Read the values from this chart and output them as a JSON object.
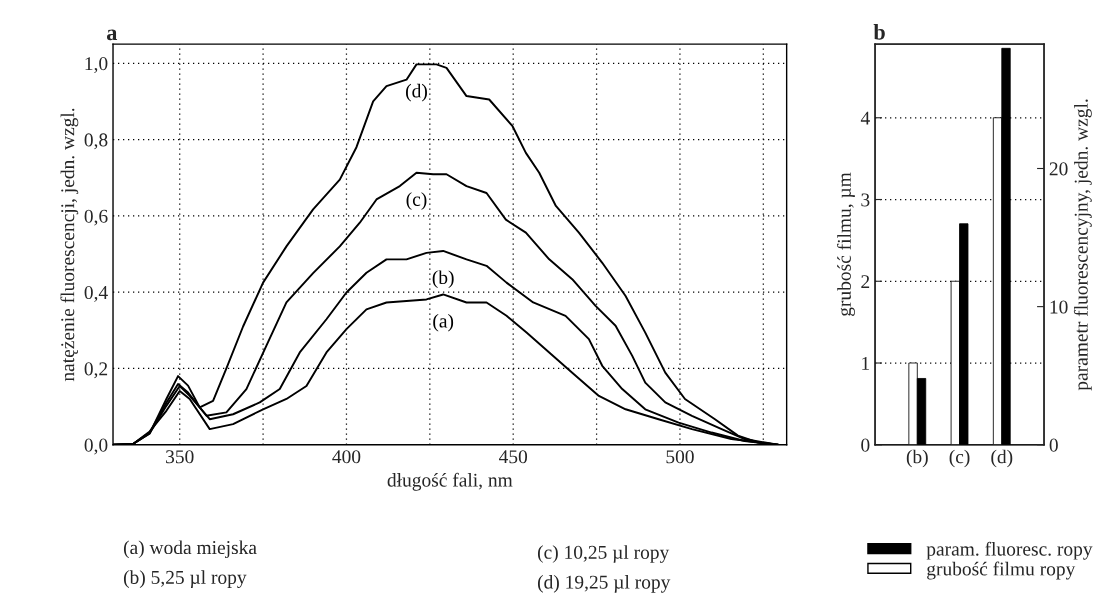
{
  "chart_data": [
    {
      "type": "line",
      "title": "a",
      "xlabel": "długość fali, nm",
      "ylabel": "natężenie fluorescencji, jedn. wzgl.",
      "xlim": [
        330,
        532
      ],
      "xticks": [
        350,
        {
          "value": 375,
          "label": null
        },
        400,
        {
          "value": 425,
          "label": null
        },
        450,
        {
          "value": 475,
          "label": null
        },
        500,
        {
          "value": 525,
          "label": null
        }
      ],
      "ylim": [
        0,
        1.05
      ],
      "yticks": [
        {
          "value": 0,
          "label": "0,0"
        },
        {
          "value": 0.2,
          "label": "0,2"
        },
        {
          "value": 0.4,
          "label": "0,4"
        },
        {
          "value": 0.6,
          "label": "0,6"
        },
        {
          "value": 0.8,
          "label": "0,8"
        },
        {
          "value": 1.0,
          "label": "1,0"
        }
      ],
      "grid": true,
      "line_style": "solid",
      "series": [
        {
          "name": "(a)",
          "color": "#000000",
          "x": [
            330,
            336,
            341,
            346,
            350,
            353,
            359,
            366,
            375,
            382,
            388,
            394,
            400,
            406,
            412,
            418,
            424,
            429,
            436,
            442,
            448,
            454,
            460.8,
            467.7,
            475.7,
            483.7,
            493.6,
            503.6,
            515.4,
            529.4
          ],
          "values": [
            0,
            0.002,
            0.035,
            0.089,
            0.141,
            0.12,
            0.041,
            0.054,
            0.093,
            0.12,
            0.154,
            0.242,
            0.303,
            0.355,
            0.373,
            0.377,
            0.381,
            0.394,
            0.373,
            0.373,
            0.338,
            0.294,
            0.242,
            0.189,
            0.128,
            0.093,
            0.067,
            0.041,
            0.015,
            0
          ]
        },
        {
          "name": "(b)",
          "color": "#000000",
          "x": [
            330,
            336,
            341,
            346,
            350,
            353,
            359,
            366,
            374,
            380,
            386,
            394,
            400,
            406,
            412,
            418,
            424,
            429,
            436,
            442,
            448,
            456,
            465.7,
            472.7,
            476.7,
            482.7,
            489.6,
            499.6,
            509.5,
            519.4,
            529.4
          ],
          "values": [
            0,
            0.002,
            0.03,
            0.102,
            0.154,
            0.128,
            0.067,
            0.08,
            0.111,
            0.146,
            0.242,
            0.329,
            0.399,
            0.451,
            0.486,
            0.486,
            0.503,
            0.508,
            0.486,
            0.469,
            0.425,
            0.373,
            0.338,
            0.277,
            0.207,
            0.146,
            0.093,
            0.058,
            0.032,
            0.01,
            0
          ]
        },
        {
          "name": "(c)",
          "color": "#000000",
          "x": [
            330,
            336,
            341,
            346,
            349.5,
            352.5,
            358,
            364,
            370,
            376,
            382,
            390,
            398,
            404,
            409,
            416,
            421,
            426,
            430,
            436,
            442,
            447.8,
            453.8,
            460.8,
            467.7,
            474.7,
            480.7,
            485.7,
            489.6,
            495.6,
            503.6,
            512.5,
            519.4,
            529.4
          ],
          "values": [
            0,
            0.002,
            0.032,
            0.11,
            0.159,
            0.137,
            0.076,
            0.085,
            0.146,
            0.26,
            0.373,
            0.45,
            0.52,
            0.582,
            0.643,
            0.678,
            0.713,
            0.709,
            0.709,
            0.678,
            0.66,
            0.59,
            0.556,
            0.486,
            0.434,
            0.364,
            0.312,
            0.233,
            0.163,
            0.111,
            0.076,
            0.041,
            0.015,
            0
          ]
        },
        {
          "name": "(d)",
          "color": "#000000",
          "x": [
            330,
            336,
            341,
            346,
            349.5,
            352.5,
            356,
            360,
            364,
            369,
            375,
            382,
            390,
            398,
            403,
            408,
            412,
            418,
            421,
            427,
            430,
            436,
            442.8,
            449.8,
            453.8,
            457.8,
            462.8,
            469.7,
            476.7,
            483.7,
            489.6,
            495.6,
            501.5,
            510.5,
            517.4,
            523.4,
            529.4
          ],
          "values": [
            0,
            0.002,
            0.03,
            0.12,
            0.18,
            0.155,
            0.098,
            0.115,
            0.2,
            0.31,
            0.425,
            0.52,
            0.617,
            0.695,
            0.78,
            0.9,
            0.94,
            0.957,
            0.997,
            0.997,
            0.988,
            0.914,
            0.905,
            0.835,
            0.765,
            0.713,
            0.626,
            0.556,
            0.477,
            0.39,
            0.294,
            0.189,
            0.12,
            0.067,
            0.024,
            0.006,
            0
          ]
        }
      ],
      "annotations": [
        "(a) woda miejska",
        "(b) 5,25 µl ropy",
        "(c) 10,25 µl ropy",
        "(d) 19,25 µl ropy"
      ]
    },
    {
      "type": "bar",
      "title": "b",
      "ylabel": "grubość filmu, µm",
      "y2label": "parametr fluorescencyjny, jedn. wzgl.",
      "categories": [
        "(b)",
        "(c)",
        "(d)"
      ],
      "ylim": [
        0,
        4.9
      ],
      "yticks": [
        0,
        1,
        2,
        3,
        4
      ],
      "y2lim": [
        0,
        29
      ],
      "y2ticks": [
        0,
        10,
        20
      ],
      "grid": "y",
      "legend": "bottom right",
      "series": [
        {
          "name": "grubość filmu ropy",
          "color": "#ffffff",
          "values": [
            1,
            2,
            4
          ]
        },
        {
          "name": "param. fluoresc. ropy",
          "color": "#000000",
          "axis": "y2",
          "values": [
            4.8,
            16,
            28.7
          ]
        }
      ]
    }
  ]
}
